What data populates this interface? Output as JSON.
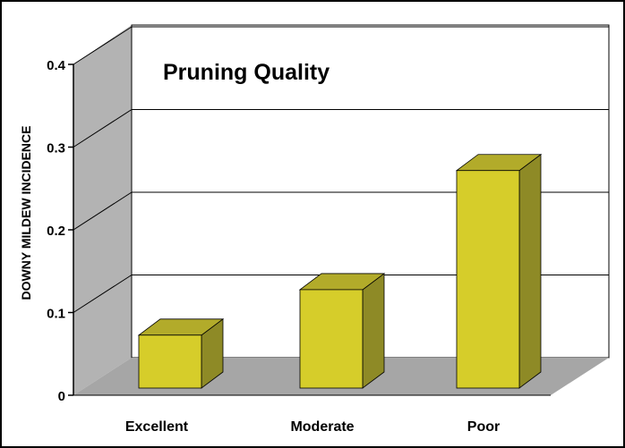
{
  "chart_data": {
    "type": "bar",
    "title": "Pruning Quality",
    "ylabel": "DOWNY MILDEW INCIDENCE",
    "xlabel": "",
    "categories": [
      "Excellent",
      "Moderate",
      "Poor"
    ],
    "values": [
      0.064,
      0.119,
      0.263
    ],
    "ylim": [
      0,
      0.4
    ],
    "yticks": [
      "0",
      "0.1",
      "0.2",
      "0.3",
      "0.4"
    ],
    "grid": true,
    "legend": "none",
    "colors": {
      "bar_front": "#d6cd2a",
      "bar_top": "#b2ab2a",
      "bar_side": "#8e8a26",
      "back_wall": "#ffffff",
      "side_wall": "#b3b3b3",
      "floor": "#a6a6a6",
      "grid": "#000000"
    }
  }
}
